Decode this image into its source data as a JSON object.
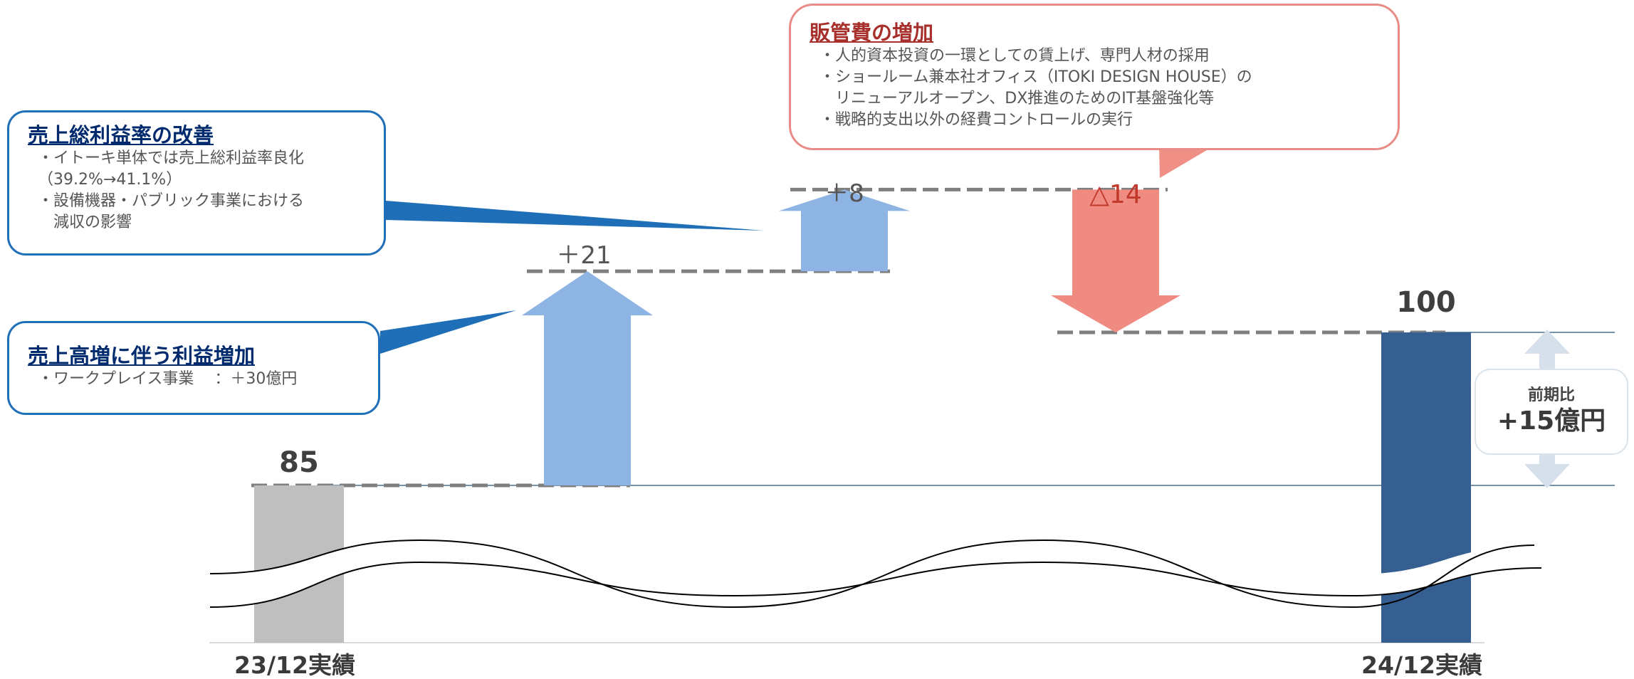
{
  "chart_data": {
    "type": "waterfall",
    "categories": [
      "23/12実績",
      "",
      "",
      "",
      "24/12実績"
    ],
    "steps": [
      {
        "kind": "total",
        "value": 85,
        "label": "85"
      },
      {
        "kind": "increase",
        "value": 21,
        "label": "＋21"
      },
      {
        "kind": "increase",
        "value": 8,
        "label": "＋8"
      },
      {
        "kind": "decrease",
        "value": -14,
        "label": "△14"
      },
      {
        "kind": "total",
        "value": 100,
        "label": "100"
      }
    ],
    "axis_break": true,
    "colors": {
      "start_bar": "#bfbfbf",
      "end_bar": "#345f90",
      "increase": "#8eb4e3",
      "decrease": "#f08b82",
      "decrease_label": "#c0392b",
      "connector": "#7f7f7f",
      "callout_blue": "#1f6fb8",
      "callout_red": "#e98c87",
      "reference_line": "#4a6f8f",
      "yoy_arrow": "#d5e0ea"
    }
  },
  "callouts": {
    "gross_margin": {
      "title": "売上総利益率の改善",
      "lines": [
        "・イトーキ単体では売上総利益率良化",
        "（39.2%→41.1%）",
        "・設備機器・パブリック事業における",
        "　減収の影響"
      ]
    },
    "sales_growth": {
      "title": "売上高増に伴う利益増加",
      "lines": [
        "・ワークプレイス事業　 ：＋30億円"
      ]
    },
    "sga": {
      "title": "販管費の増加",
      "lines": [
        "・人的資本投資の一環としての賃上げ、専門人材の採用",
        "・ショールーム兼本社オフィス（ITOKI DESIGN HOUSE）の",
        "　リニューアルオープン、DX推進のためのIT基盤強化等",
        "・戦略的支出以外の経費コントロールの実行"
      ]
    }
  },
  "yoy": {
    "label": "前期比",
    "value": "+15億円"
  }
}
